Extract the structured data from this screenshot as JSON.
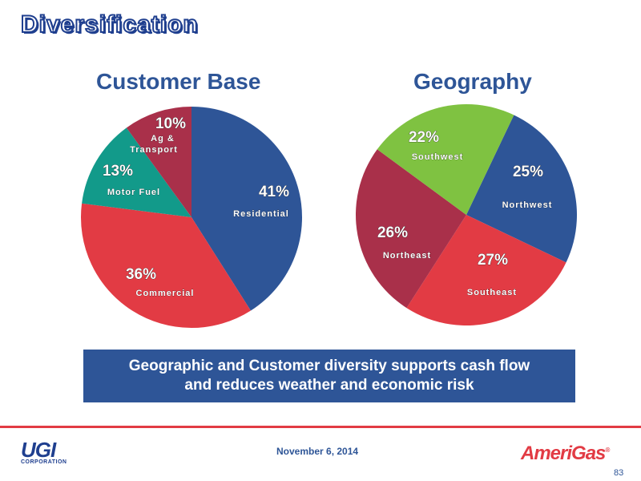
{
  "page_title": "Diversification",
  "callout": {
    "line1": "Geographic and Customer diversity supports cash flow",
    "line2": "and reduces weather and economic risk"
  },
  "footer": {
    "date": "November 6, 2014",
    "page_number": "83",
    "left_logo_text": "UGI",
    "left_logo_sub": "CORPORATION",
    "right_logo_text": "AmeriGas"
  },
  "colors": {
    "blue": "#2e5597",
    "red": "#e23b44",
    "crimson": "#a9304a",
    "teal": "#129a8a",
    "green": "#7fc241"
  },
  "chart_data": [
    {
      "type": "pie",
      "title": "Customer Base",
      "slices": [
        {
          "label": "Residential",
          "value": 41,
          "pct_text": "41%",
          "color": "#2e5597"
        },
        {
          "label": "Commercial",
          "value": 36,
          "pct_text": "36%",
          "color": "#e23b44"
        },
        {
          "label": "Motor Fuel",
          "value": 13,
          "pct_text": "13%",
          "color": "#129a8a"
        },
        {
          "label": "Ag & Transport",
          "label_lines": [
            "Ag &",
            "Transport"
          ],
          "value": 10,
          "pct_text": "10%",
          "color": "#a9304a"
        }
      ]
    },
    {
      "type": "pie",
      "title": "Geography",
      "slices": [
        {
          "label": "Northwest",
          "value": 25,
          "pct_text": "25%",
          "color": "#2e5597"
        },
        {
          "label": "Southeast",
          "value": 27,
          "pct_text": "27%",
          "color": "#e23b44"
        },
        {
          "label": "Northeast",
          "value": 26,
          "pct_text": "26%",
          "color": "#a9304a"
        },
        {
          "label": "Southwest",
          "value": 22,
          "pct_text": "22%",
          "color": "#7fc241"
        }
      ]
    }
  ]
}
